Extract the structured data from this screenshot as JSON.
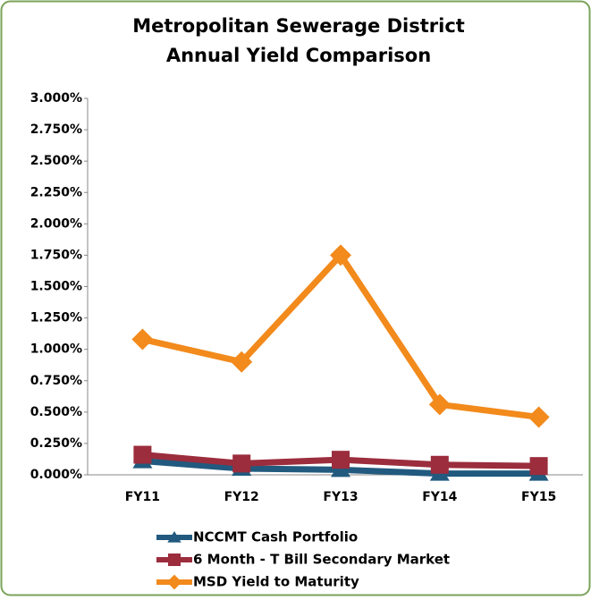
{
  "chart_data": {
    "type": "line",
    "title": [
      "Metropolitan Sewerage District",
      "Annual Yield Comparison"
    ],
    "categories": [
      "FY11",
      "FY12",
      "FY13",
      "FY14",
      "FY15"
    ],
    "series": [
      {
        "name": "NCCMT Cash Portfolio",
        "color": "#215a7e",
        "marker": "triangle",
        "values": [
          0.11,
          0.05,
          0.04,
          0.01,
          0.01
        ]
      },
      {
        "name": "6 Month - T Bill Secondary Market",
        "color": "#9b2d3d",
        "marker": "square",
        "values": [
          0.16,
          0.09,
          0.12,
          0.08,
          0.07
        ]
      },
      {
        "name": "MSD Yield to Maturity",
        "color": "#f28a1c",
        "marker": "diamond",
        "values": [
          1.08,
          0.9,
          1.75,
          0.56,
          0.46
        ]
      }
    ],
    "ylim": [
      0,
      3
    ],
    "yticks": [
      {
        "value": 0,
        "label": "0.000%"
      },
      {
        "value": 0.25,
        "label": "0.250%"
      },
      {
        "value": 0.5,
        "label": "0.500%"
      },
      {
        "value": 0.75,
        "label": "0.750%"
      },
      {
        "value": 1,
        "label": "1.000%"
      },
      {
        "value": 1.25,
        "label": "1.250%"
      },
      {
        "value": 1.5,
        "label": "1.500%"
      },
      {
        "value": 1.75,
        "label": "1.750%"
      },
      {
        "value": 2,
        "label": "2.000%"
      },
      {
        "value": 2.25,
        "label": "2.250%"
      },
      {
        "value": 2.5,
        "label": "2.500%"
      },
      {
        "value": 2.75,
        "label": "2.750%"
      },
      {
        "value": 3,
        "label": "3.000%"
      }
    ],
    "grid": false,
    "legend": "bottom"
  }
}
